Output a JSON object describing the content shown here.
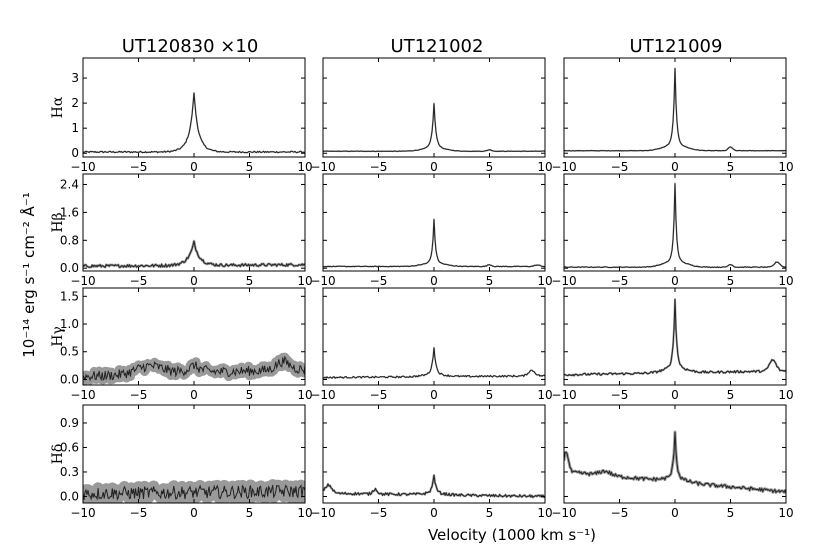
{
  "figure": {
    "xlabel": "Velocity (1000 km s⁻¹)",
    "ylabel": "10⁻¹⁴ erg s⁻¹ cm⁻² Å⁻¹"
  },
  "columns": [
    "UT120830 ×10",
    "UT121002",
    "UT121009"
  ],
  "rows": [
    {
      "label": "Hα",
      "ticks": [
        "0",
        "1",
        "2",
        "3"
      ],
      "tick_values": [
        0,
        1,
        2,
        3
      ],
      "ylim": [
        -0.15,
        3.8
      ]
    },
    {
      "label": "Hβ",
      "ticks": [
        "0.0",
        "0.8",
        "1.6",
        "2.4"
      ],
      "tick_values": [
        0,
        0.8,
        1.6,
        2.4
      ],
      "ylim": [
        -0.08,
        2.7
      ]
    },
    {
      "label": "Hγ",
      "ticks": [
        "0.0",
        "0.5",
        "1.0",
        "1.5"
      ],
      "tick_values": [
        0,
        0.5,
        1.0,
        1.5
      ],
      "ylim": [
        -0.1,
        1.65
      ]
    },
    {
      "label": "Hδ",
      "ticks": [
        "0.0",
        "0.3",
        "0.6",
        "0.9"
      ],
      "tick_values": [
        0,
        0.3,
        0.6,
        0.9
      ],
      "ylim": [
        -0.08,
        1.12
      ]
    }
  ],
  "x_ticks": [
    "−10",
    "−5",
    "0",
    "5",
    "10"
  ],
  "x_tick_values": [
    -10,
    -5,
    0,
    5,
    10
  ],
  "chart_data": {
    "type": "line",
    "xlim": [
      -10,
      10
    ],
    "grid": false,
    "panels": [
      {
        "row": "Hα",
        "column": "UT120830 ×10",
        "baseline": 0.05,
        "peak": 2.25,
        "width": 0.35,
        "noise": 0.03,
        "tail_start": 0.05,
        "tail_end": 0.05,
        "bumps": []
      },
      {
        "row": "Hα",
        "column": "UT121002",
        "baseline": 0.08,
        "peak": 1.85,
        "width": 0.18,
        "noise": 0.01,
        "tail_start": 0.08,
        "tail_end": 0.08,
        "bumps": [
          [
            5,
            0.06,
            0.2
          ]
        ]
      },
      {
        "row": "Hα",
        "column": "UT121009",
        "baseline": 0.1,
        "peak": 3.15,
        "width": 0.15,
        "noise": 0.01,
        "tail_start": 0.1,
        "tail_end": 0.1,
        "bumps": [
          [
            5,
            0.15,
            0.2
          ]
        ]
      },
      {
        "row": "Hβ",
        "column": "UT120830 ×10",
        "baseline": 0.08,
        "peak": 0.7,
        "width": 0.45,
        "noise": 0.04,
        "tail_start": 0.08,
        "tail_end": 0.12,
        "bumps": []
      },
      {
        "row": "Hβ",
        "column": "UT121002",
        "baseline": 0.05,
        "peak": 1.3,
        "width": 0.15,
        "noise": 0.01,
        "tail_start": 0.05,
        "tail_end": 0.05,
        "bumps": [
          [
            5,
            0.05,
            0.2
          ],
          [
            9.3,
            0.04,
            0.25
          ]
        ]
      },
      {
        "row": "Hβ",
        "column": "UT121009",
        "baseline": 0.03,
        "peak": 2.25,
        "width": 0.14,
        "noise": 0.01,
        "tail_start": 0.03,
        "tail_end": 0.03,
        "bumps": [
          [
            5,
            0.08,
            0.2
          ],
          [
            9.2,
            0.15,
            0.25
          ]
        ]
      },
      {
        "row": "Hγ",
        "column": "UT120830 ×10",
        "baseline": 0.12,
        "peak": 0.25,
        "width": 0.7,
        "noise": 0.09,
        "tail_start": 0.05,
        "tail_end": 0.18,
        "bumps": [
          [
            -4,
            0.15,
            1.2
          ],
          [
            8,
            0.15,
            0.6
          ]
        ]
      },
      {
        "row": "Hγ",
        "column": "UT121002",
        "baseline": 0.05,
        "peak": 0.55,
        "width": 0.18,
        "noise": 0.015,
        "tail_start": 0.02,
        "tail_end": 0.05,
        "bumps": [
          [
            8.8,
            0.1,
            0.3
          ]
        ]
      },
      {
        "row": "Hγ",
        "column": "UT121009",
        "baseline": 0.12,
        "peak": 1.35,
        "width": 0.16,
        "noise": 0.02,
        "tail_start": 0.05,
        "tail_end": 0.12,
        "bumps": [
          [
            8.8,
            0.2,
            0.3
          ]
        ]
      },
      {
        "row": "Hδ",
        "column": "UT120830 ×10",
        "baseline": 0.05,
        "peak": 0.05,
        "width": 0.5,
        "noise": 0.08,
        "tail_start": 0.02,
        "tail_end": 0.05,
        "bumps": []
      },
      {
        "row": "Hδ",
        "column": "UT121002",
        "baseline": 0.02,
        "peak": 0.25,
        "width": 0.18,
        "noise": 0.015,
        "tail_start": 0.05,
        "tail_end": 0.01,
        "bumps": [
          [
            -9.5,
            0.1,
            0.3
          ],
          [
            -5.3,
            0.06,
            0.2
          ]
        ]
      },
      {
        "row": "Hδ",
        "column": "UT121009",
        "baseline": 0.18,
        "peak": 0.75,
        "width": 0.16,
        "noise": 0.02,
        "tail_start": 0.3,
        "tail_end": 0.05,
        "bumps": [
          [
            -9.8,
            0.25,
            0.2
          ],
          [
            -6.3,
            0.05,
            0.5
          ]
        ]
      }
    ]
  }
}
